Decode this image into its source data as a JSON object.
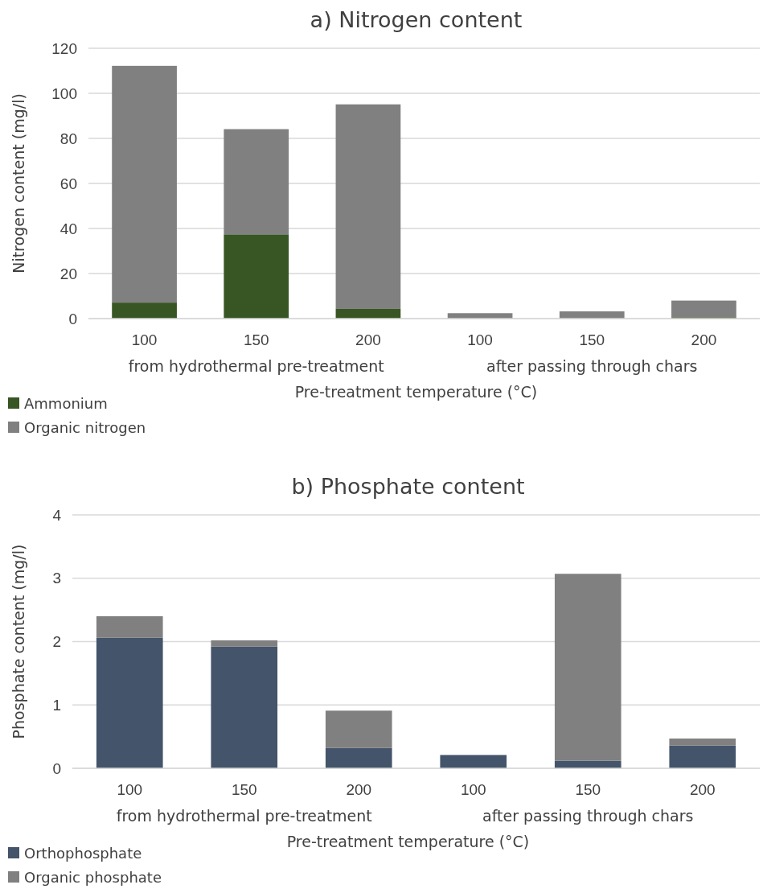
{
  "chart_data": [
    {
      "type": "bar",
      "title": "a) Nitrogen content",
      "xlabel": "Pre-treatment temperature (°C)",
      "ylabel": "Nitrogen content (mg/l)",
      "categories": [
        "100",
        "150",
        "200",
        "100",
        "150",
        "200"
      ],
      "stacked": true,
      "series": [
        {
          "name": "Ammonium",
          "color": "#375623",
          "values": [
            7.1,
            37.4,
            4.3,
            0,
            0,
            0.6
          ]
        },
        {
          "name": "Organic nitrogen",
          "color": "#808080",
          "values": [
            105.1,
            46.7,
            90.8,
            2.4,
            3.2,
            7.4
          ]
        }
      ],
      "annotations": [
        "from hydrothermal pre-treatment",
        "after passing through chars"
      ],
      "ylim": [
        0,
        120
      ],
      "yticks": [
        0,
        20,
        40,
        60,
        80,
        100,
        120
      ],
      "grid": "y",
      "legend": "bottom left"
    },
    {
      "type": "bar",
      "title": "b) Phosphate content",
      "xlabel": "Pre-treatment temperature (°C)",
      "ylabel": "Phosphate content (mg/l)",
      "categories": [
        "100",
        "150",
        "200",
        "100",
        "150",
        "200"
      ],
      "stacked": true,
      "series": [
        {
          "name": "Orthophosphate",
          "color": "#44546a",
          "values": [
            2.06,
            1.92,
            0.32,
            0.21,
            0.12,
            0.36
          ]
        },
        {
          "name": "Organic phosphate",
          "color": "#808080",
          "values": [
            0.34,
            0.1,
            0.59,
            0,
            2.95,
            0.11
          ]
        }
      ],
      "annotations": [
        "from hydrothermal pre-treatment",
        "after passing through chars"
      ],
      "ylim": [
        0,
        4
      ],
      "yticks": [
        0,
        1,
        2,
        3,
        4
      ],
      "grid": "y",
      "legend": "bottom left"
    }
  ]
}
